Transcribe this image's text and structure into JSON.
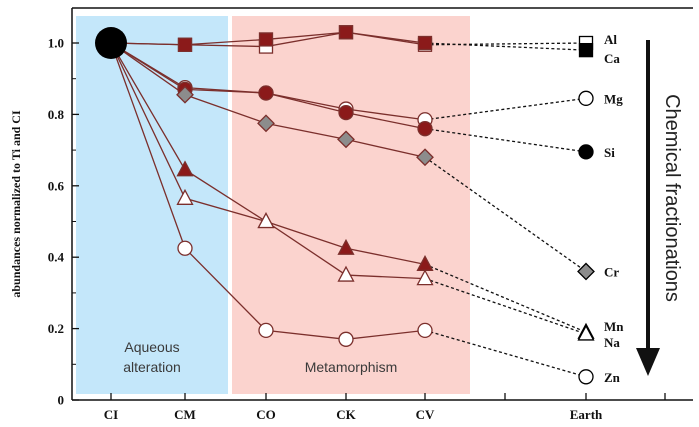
{
  "chart_data": {
    "type": "line",
    "ylabel": "abundances normalized to Ti and CI",
    "ylim": [
      0,
      1.1
    ],
    "yticks": [
      0,
      0.2,
      0.4,
      0.6,
      0.8,
      1.0
    ],
    "ytick_labels": [
      "0",
      "0.2",
      "0.4",
      "0.6",
      "0.8",
      "1.0"
    ],
    "categories": [
      "CI",
      "CM",
      "CO",
      "CK",
      "CV",
      "Earth"
    ],
    "regions": [
      {
        "label_lines": [
          "Aqueous",
          "alteration"
        ],
        "from": "CI",
        "to": "CM",
        "color": "#c4e7fa"
      },
      {
        "label_lines": [
          "Metamorphism"
        ],
        "from": "CO",
        "to": "CV",
        "color": "#fbd3ce"
      }
    ],
    "side_title": "Chemical fractionations",
    "origin_point": {
      "category": "CI",
      "value": 1.0
    },
    "series": [
      {
        "name": "Al",
        "marker": "square",
        "fill": "open",
        "values": [
          1.0,
          0.995,
          0.99,
          1.03,
          0.995,
          1.0
        ]
      },
      {
        "name": "Ca",
        "marker": "square",
        "fill": "filled",
        "values": [
          1.0,
          0.995,
          1.01,
          1.03,
          1.0,
          0.98
        ]
      },
      {
        "name": "Mg",
        "marker": "circle",
        "fill": "open",
        "values": [
          1.0,
          0.875,
          0.86,
          0.815,
          0.785,
          0.845
        ]
      },
      {
        "name": "Si",
        "marker": "circle",
        "fill": "filled",
        "values": [
          1.0,
          0.87,
          0.86,
          0.805,
          0.76,
          0.695
        ]
      },
      {
        "name": "Cr",
        "marker": "diamond",
        "fill": "gray",
        "values": [
          1.0,
          0.855,
          0.775,
          0.73,
          0.68,
          0.36
        ]
      },
      {
        "name": "Mn",
        "marker": "triangle",
        "fill": "filled",
        "values": [
          1.0,
          0.645,
          0.5,
          0.425,
          0.38,
          0.19
        ]
      },
      {
        "name": "Na",
        "marker": "triangle",
        "fill": "open",
        "values": [
          1.0,
          0.565,
          0.5,
          0.35,
          0.34,
          0.185
        ]
      },
      {
        "name": "Zn",
        "marker": "circle",
        "fill": "open",
        "values": [
          1.0,
          0.425,
          0.195,
          0.17,
          0.195,
          0.065
        ]
      }
    ],
    "colors": {
      "line": "#7b2f2c",
      "dashed": "#111111",
      "marker_fill": "#8b1a1a",
      "gray_fill": "#8c8c8c",
      "open_fill": "#ffffff",
      "arrow": "#111111"
    }
  }
}
